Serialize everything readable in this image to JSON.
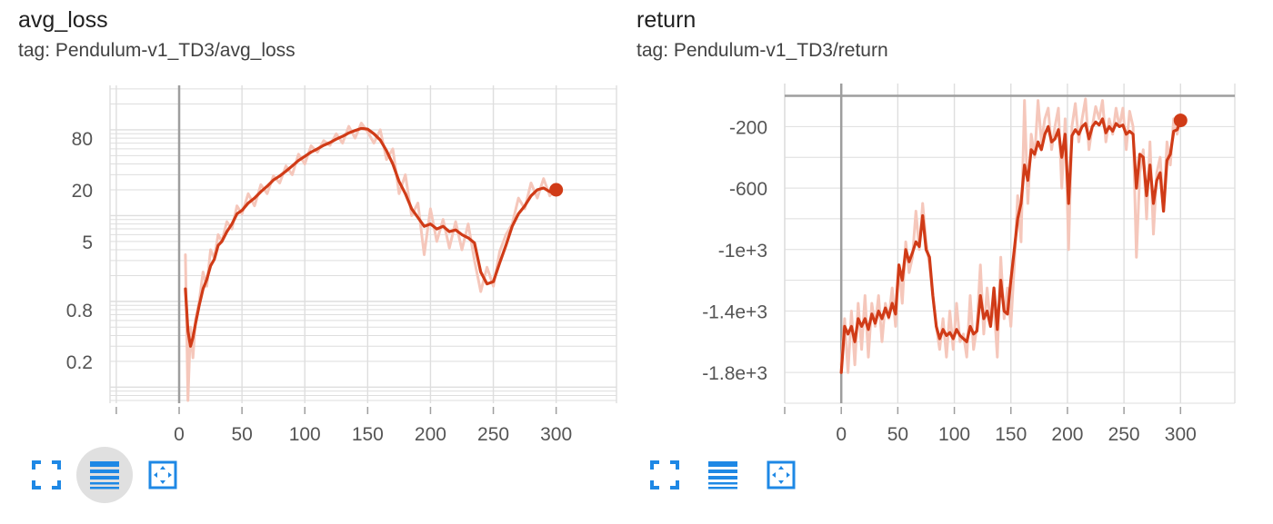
{
  "chart_data": [
    {
      "type": "line",
      "title": "avg_loss",
      "subtitle": "tag: Pendulum-v1_TD3/avg_loss",
      "yscale": "log",
      "xlim": [
        -55,
        348
      ],
      "ylim": [
        0.065,
        330
      ],
      "xticks": [
        0,
        50,
        100,
        150,
        200,
        250,
        300
      ],
      "yticks": [
        0.2,
        0.8,
        5,
        20,
        80
      ],
      "grid": true,
      "series": [
        {
          "role": "raw",
          "color": "#f5c7bb",
          "x": [
            5,
            7,
            9,
            11,
            13,
            16,
            19,
            22,
            25,
            28,
            31,
            34,
            38,
            42,
            46,
            50,
            55,
            60,
            65,
            70,
            75,
            80,
            85,
            90,
            95,
            100,
            105,
            110,
            115,
            120,
            125,
            130,
            135,
            140,
            145,
            150,
            155,
            160,
            165,
            170,
            175,
            180,
            185,
            190,
            195,
            200,
            205,
            210,
            215,
            220,
            225,
            230,
            235,
            240,
            245,
            250,
            255,
            260,
            265,
            270,
            275,
            280,
            285,
            290,
            295,
            300
          ],
          "y": [
            3.5,
            0.07,
            0.5,
            0.22,
            0.6,
            1.0,
            2.2,
            1.5,
            4.0,
            3.2,
            6.0,
            5.0,
            8.5,
            7.0,
            13.0,
            10.5,
            18.0,
            13.0,
            23.0,
            18.0,
            29.0,
            24.0,
            38.0,
            30.0,
            52.0,
            40.0,
            65.0,
            55.0,
            75.0,
            66.0,
            90.0,
            70.0,
            110.0,
            80.0,
            120.0,
            95.0,
            70.0,
            100.0,
            45.0,
            60.0,
            18.0,
            30.0,
            10.0,
            14.0,
            3.5,
            12.0,
            5.0,
            9.0,
            4.2,
            8.5,
            4.0,
            8.0,
            3.0,
            1.3,
            2.5,
            1.5,
            3.8,
            6.0,
            8.0,
            16.0,
            12.0,
            24.0,
            16.0,
            27.0,
            17.0,
            23.0
          ]
        },
        {
          "role": "smoothed",
          "color": "#d03b17",
          "x": [
            5,
            7,
            9,
            11,
            13,
            16,
            19,
            22,
            25,
            28,
            31,
            34,
            38,
            42,
            46,
            50,
            55,
            60,
            65,
            70,
            75,
            80,
            85,
            90,
            95,
            100,
            105,
            110,
            115,
            120,
            125,
            130,
            135,
            140,
            145,
            150,
            155,
            160,
            165,
            170,
            175,
            180,
            185,
            190,
            195,
            200,
            205,
            210,
            215,
            220,
            225,
            230,
            235,
            240,
            245,
            250,
            255,
            260,
            265,
            270,
            275,
            280,
            285,
            290,
            295,
            300
          ],
          "y": [
            1.4,
            0.45,
            0.3,
            0.38,
            0.55,
            0.9,
            1.4,
            1.8,
            2.6,
            3.1,
            4.5,
            5.0,
            6.5,
            8.0,
            10.5,
            11.5,
            14.0,
            16.0,
            19.0,
            22.0,
            26.0,
            29.0,
            33.0,
            38.0,
            44.0,
            49.0,
            55.0,
            60.0,
            66.0,
            71.0,
            78.0,
            84.0,
            92.0,
            98.0,
            104.0,
            102.0,
            90.0,
            76.0,
            57.0,
            40.0,
            25.0,
            18.0,
            12.0,
            9.5,
            7.5,
            8.0,
            7.0,
            7.5,
            6.5,
            6.8,
            6.0,
            5.5,
            4.8,
            2.2,
            1.6,
            1.7,
            2.8,
            4.5,
            7.5,
            10.5,
            13.0,
            17.0,
            20.0,
            21.0,
            19.0,
            20.0
          ]
        }
      ]
    },
    {
      "type": "line",
      "title": "return",
      "subtitle": "tag: Pendulum-v1_TD3/return",
      "yscale": "linear",
      "xlim": [
        -50,
        348
      ],
      "ylim": [
        -2000,
        80
      ],
      "xticks": [
        0,
        50,
        100,
        150,
        200,
        250,
        300
      ],
      "yticks": [
        -200,
        -600,
        -1000,
        -1400,
        -1800
      ],
      "ytick_labels": [
        "-200",
        "-600",
        "-1e+3",
        "-1.4e+3",
        "-1.8e+3"
      ],
      "grid": true,
      "series": [
        {
          "role": "raw",
          "color": "#f5c7bb",
          "x": [
            0,
            3,
            6,
            9,
            12,
            15,
            18,
            21,
            24,
            27,
            30,
            33,
            36,
            39,
            42,
            45,
            48,
            51,
            54,
            57,
            60,
            63,
            66,
            69,
            72,
            75,
            78,
            81,
            84,
            87,
            90,
            93,
            96,
            99,
            102,
            105,
            108,
            111,
            114,
            117,
            120,
            123,
            126,
            129,
            132,
            135,
            138,
            141,
            144,
            147,
            150,
            153,
            156,
            159,
            162,
            165,
            168,
            171,
            174,
            177,
            180,
            183,
            186,
            189,
            192,
            195,
            198,
            201,
            204,
            207,
            210,
            213,
            216,
            219,
            222,
            225,
            228,
            231,
            234,
            237,
            240,
            243,
            246,
            249,
            252,
            255,
            258,
            261,
            264,
            267,
            270,
            273,
            276,
            279,
            282,
            285,
            288,
            291,
            294,
            297,
            300
          ],
          "y": [
            -1750,
            -1450,
            -1800,
            -1400,
            -1750,
            -1350,
            -1650,
            -1300,
            -1700,
            -1350,
            -1500,
            -1300,
            -1600,
            -1350,
            -1450,
            -1250,
            -1500,
            -1100,
            -1350,
            -950,
            -1150,
            -1050,
            -750,
            -1000,
            -700,
            -950,
            -1100,
            -1300,
            -1500,
            -1650,
            -1450,
            -1700,
            -1400,
            -1650,
            -1350,
            -1600,
            -1550,
            -1700,
            -1300,
            -1650,
            -1500,
            -1100,
            -1550,
            -1250,
            -1500,
            -1350,
            -1700,
            -1050,
            -1450,
            -1250,
            -1500,
            -1100,
            -650,
            -950,
            -30,
            -700,
            -250,
            -400,
            -30,
            -300,
            -150,
            -80,
            -350,
            -200,
            -80,
            -600,
            -150,
            -1000,
            -200,
            -50,
            -300,
            -150,
            -20,
            -350,
            -200,
            -70,
            -150,
            -30,
            -300,
            -150,
            -250,
            -80,
            -200,
            -80,
            -350,
            -100,
            -200,
            -1050,
            -500,
            -350,
            -800,
            -300,
            -900,
            -500,
            -400,
            -750,
            -300,
            -450,
            -150,
            -250,
            -120
          ]
        },
        {
          "role": "smoothed",
          "color": "#d03b17",
          "x": [
            0,
            3,
            6,
            9,
            12,
            15,
            18,
            21,
            24,
            27,
            30,
            33,
            36,
            39,
            42,
            45,
            48,
            51,
            54,
            57,
            60,
            63,
            66,
            69,
            72,
            75,
            78,
            81,
            84,
            87,
            90,
            93,
            96,
            99,
            102,
            105,
            108,
            111,
            114,
            117,
            120,
            123,
            126,
            129,
            132,
            135,
            138,
            141,
            144,
            147,
            150,
            153,
            156,
            159,
            162,
            165,
            168,
            171,
            174,
            177,
            180,
            183,
            186,
            189,
            192,
            195,
            198,
            201,
            204,
            207,
            210,
            213,
            216,
            219,
            222,
            225,
            228,
            231,
            234,
            237,
            240,
            243,
            246,
            249,
            252,
            255,
            258,
            261,
            264,
            267,
            270,
            273,
            276,
            279,
            282,
            285,
            288,
            291,
            294,
            297,
            300
          ],
          "y": [
            -1800,
            -1500,
            -1550,
            -1500,
            -1600,
            -1450,
            -1500,
            -1450,
            -1520,
            -1420,
            -1480,
            -1400,
            -1450,
            -1380,
            -1440,
            -1350,
            -1420,
            -1100,
            -1200,
            -1000,
            -1080,
            -1020,
            -950,
            -980,
            -780,
            -1000,
            -1050,
            -1300,
            -1500,
            -1580,
            -1520,
            -1560,
            -1540,
            -1580,
            -1520,
            -1560,
            -1580,
            -1600,
            -1500,
            -1550,
            -1530,
            -1300,
            -1450,
            -1400,
            -1500,
            -1250,
            -1520,
            -1200,
            -1400,
            -1420,
            -1200,
            -1000,
            -800,
            -700,
            -450,
            -550,
            -350,
            -380,
            -300,
            -350,
            -250,
            -200,
            -300,
            -280,
            -220,
            -400,
            -250,
            -700,
            -260,
            -220,
            -250,
            -200,
            -180,
            -280,
            -200,
            -170,
            -190,
            -150,
            -240,
            -200,
            -230,
            -180,
            -200,
            -190,
            -250,
            -230,
            -250,
            -600,
            -380,
            -400,
            -650,
            -450,
            -700,
            -550,
            -500,
            -750,
            -420,
            -380,
            -230,
            -220,
            -160
          ]
        }
      ]
    }
  ],
  "toolbar": {
    "icons": [
      "fullscreen-icon",
      "toggle-log-scale-icon",
      "fit-domain-icon"
    ],
    "active_on_first_card": "toggle-log-scale-icon",
    "accent_color": "#1e88e5"
  },
  "style": {
    "raw_color": "#f5c7bb",
    "smoothed_color": "#d03b17",
    "grid_color": "#dedede",
    "axis_color": "#9e9e9e"
  }
}
